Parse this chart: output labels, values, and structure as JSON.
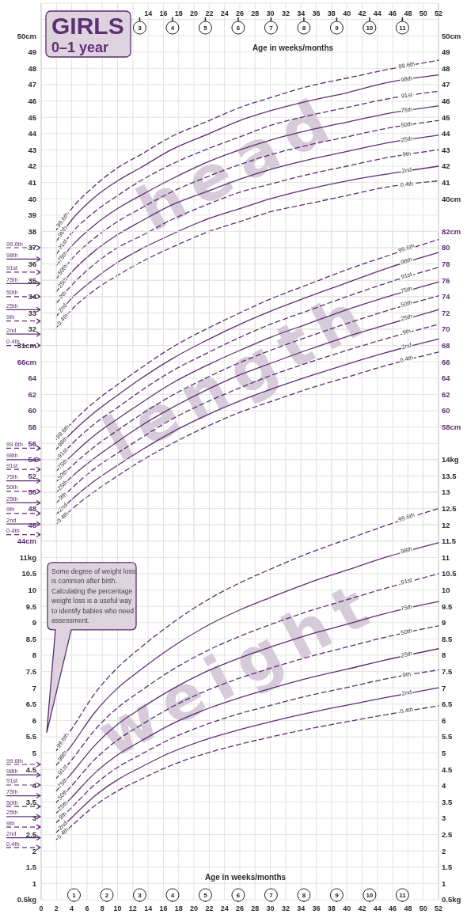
{
  "chart_data": [
    {
      "type": "line",
      "title": "GIRLS",
      "subtitle": "0–1 year",
      "ylabel": "head",
      "xlabel": "Age in weeks/months",
      "grid": true,
      "xlim": [
        0,
        52
      ],
      "ylim": [
        31,
        52
      ],
      "y2lim": [
        31,
        52
      ],
      "xticks": [
        14,
        16,
        18,
        20,
        22,
        24,
        26,
        28,
        30,
        32,
        34,
        36,
        38,
        40,
        42,
        44,
        46,
        48,
        50,
        52
      ],
      "x2lim": [
        0,
        12.1
      ],
      "x2ticks": [
        3,
        4,
        5,
        6,
        7,
        8,
        9,
        10,
        11
      ],
      "yticks": [
        {
          "value": 31,
          "label": "31cm"
        },
        32,
        33,
        34,
        35,
        36,
        37,
        38,
        39,
        40,
        41,
        42,
        43,
        44,
        45,
        46,
        47,
        48,
        49,
        {
          "value": 50,
          "label": "50cm"
        }
      ],
      "y2ticks": [
        {
          "value": 40,
          "label": "40cm"
        },
        41,
        42,
        43,
        44,
        45,
        46,
        47,
        48,
        49,
        {
          "value": 50,
          "label": "50cm"
        }
      ],
      "x": [
        2,
        4,
        7,
        10,
        13,
        17,
        22,
        26,
        30,
        35,
        40,
        45,
        52
      ],
      "series": [
        {
          "name": "99.6th",
          "color": "#5f2d73",
          "line_style": "dashed",
          "values": [
            38.1,
            39.4,
            40.8,
            41.9,
            42.7,
            43.8,
            44.8,
            45.6,
            46.2,
            46.9,
            47.4,
            47.9,
            48.5
          ]
        },
        {
          "name": "98th",
          "color": "#5f2d73",
          "line_style": "solid",
          "values": [
            37.4,
            38.7,
            40.1,
            41.1,
            41.9,
            43.0,
            44.0,
            44.8,
            45.4,
            46.0,
            46.5,
            47.1,
            47.6
          ]
        },
        {
          "name": "91st",
          "color": "#5f2d73",
          "line_style": "dashed",
          "values": [
            36.6,
            37.9,
            39.2,
            40.2,
            41.1,
            42.1,
            43.1,
            43.8,
            44.5,
            45.1,
            45.6,
            46.1,
            46.6
          ]
        },
        {
          "name": "75th",
          "color": "#5f2d73",
          "line_style": "solid",
          "values": [
            35.9,
            37.1,
            38.4,
            39.4,
            40.2,
            41.2,
            42.3,
            43.0,
            43.6,
            44.2,
            44.7,
            45.2,
            45.7
          ]
        },
        {
          "name": "50th",
          "color": "#5f2d73",
          "line_style": "dashed",
          "values": [
            35.1,
            36.3,
            37.6,
            38.6,
            39.4,
            40.4,
            41.4,
            42.1,
            42.7,
            43.3,
            43.8,
            44.3,
            44.8
          ]
        },
        {
          "name": "25th",
          "color": "#5f2d73",
          "line_style": "solid",
          "values": [
            34.3,
            35.5,
            36.8,
            37.8,
            38.6,
            39.6,
            40.5,
            41.2,
            41.8,
            42.4,
            42.9,
            43.4,
            43.9
          ]
        },
        {
          "name": "9th",
          "color": "#5f2d73",
          "line_style": "dashed",
          "values": [
            33.6,
            34.7,
            36.0,
            37.0,
            37.7,
            38.7,
            39.7,
            40.4,
            40.9,
            41.5,
            42.0,
            42.5,
            43.0
          ]
        },
        {
          "name": "2nd",
          "color": "#5f2d73",
          "line_style": "solid",
          "values": [
            32.8,
            33.9,
            35.1,
            36.1,
            36.9,
            37.8,
            38.8,
            39.4,
            40.0,
            40.6,
            41.1,
            41.5,
            42.0
          ]
        },
        {
          "name": "0.4th",
          "color": "#5f2d73",
          "line_style": "dashed",
          "values": [
            32.1,
            33.2,
            34.4,
            35.3,
            36.1,
            37.0,
            38.0,
            38.6,
            39.2,
            39.7,
            40.2,
            40.7,
            41.1
          ]
        }
      ],
      "ref_lines": [
        {
          "axis": "y",
          "value": 37.0,
          "label": "99.6th",
          "line_style": "dashed"
        },
        {
          "axis": "y",
          "value": 36.3,
          "label": "98th",
          "line_style": "solid"
        },
        {
          "axis": "y",
          "value": 35.5,
          "label": "91st",
          "line_style": "dashed"
        },
        {
          "axis": "y",
          "value": 34.8,
          "label": "75th",
          "line_style": "solid"
        },
        {
          "axis": "y",
          "value": 34.0,
          "label": "50th",
          "line_style": "dashed"
        },
        {
          "axis": "y",
          "value": 33.2,
          "label": "25th",
          "line_style": "solid"
        },
        {
          "axis": "y",
          "value": 32.5,
          "label": "9th",
          "line_style": "dashed"
        },
        {
          "axis": "y",
          "value": 31.7,
          "label": "2nd",
          "line_style": "solid"
        },
        {
          "axis": "y",
          "value": 31.0,
          "label": "0.4th",
          "line_style": "dashed"
        }
      ]
    },
    {
      "type": "line",
      "ylabel": "length",
      "grid": true,
      "tick_labels": "y",
      "xlim": [
        0,
        52
      ],
      "ylim": [
        44,
        82
      ],
      "y2lim": [
        44,
        82
      ],
      "yticks": [
        {
          "value": 44,
          "label": "44cm"
        },
        46,
        48,
        50,
        52,
        54,
        56,
        58,
        60,
        62,
        64,
        {
          "value": 66,
          "label": "66cm"
        }
      ],
      "y2ticks": [
        {
          "value": 58,
          "label": "58cm"
        },
        60,
        62,
        64,
        66,
        68,
        70,
        72,
        74,
        76,
        78,
        80,
        {
          "value": 82,
          "label": "82cm"
        }
      ],
      "x": [
        2,
        4,
        7,
        10,
        13,
        17,
        22,
        26,
        30,
        35,
        40,
        45,
        52
      ],
      "series": [
        {
          "name": "99.6th",
          "color": "#5f2d73",
          "line_style": "dashed",
          "values": [
            56.5,
            58.5,
            61.1,
            63.2,
            65.2,
            67.7,
            70.2,
            72.0,
            73.7,
            75.5,
            77.3,
            78.9,
            81.0
          ]
        },
        {
          "name": "98th",
          "color": "#5f2d73",
          "line_style": "solid",
          "values": [
            55.3,
            57.3,
            59.8,
            61.9,
            63.9,
            66.3,
            68.8,
            70.6,
            72.2,
            74.0,
            75.7,
            77.4,
            79.4
          ]
        },
        {
          "name": "91st",
          "color": "#5f2d73",
          "line_style": "dashed",
          "values": [
            53.9,
            55.9,
            58.4,
            60.4,
            62.4,
            64.8,
            67.2,
            69.0,
            70.6,
            72.3,
            74.0,
            75.6,
            77.6
          ]
        },
        {
          "name": "75th",
          "color": "#5f2d73",
          "line_style": "solid",
          "values": [
            52.6,
            54.5,
            57.0,
            59.0,
            60.9,
            63.3,
            65.7,
            67.4,
            69.0,
            70.7,
            72.4,
            73.9,
            75.8
          ]
        },
        {
          "name": "50th",
          "color": "#5f2d73",
          "line_style": "dashed",
          "values": [
            51.3,
            53.2,
            55.6,
            57.6,
            59.5,
            61.8,
            64.2,
            65.9,
            67.4,
            69.1,
            70.7,
            72.2,
            74.1
          ]
        },
        {
          "name": "25th",
          "color": "#5f2d73",
          "line_style": "solid",
          "values": [
            50.0,
            51.9,
            54.2,
            56.2,
            58.1,
            60.3,
            62.7,
            64.4,
            65.8,
            67.5,
            69.1,
            70.5,
            72.4
          ]
        },
        {
          "name": "9th",
          "color": "#5f2d73",
          "line_style": "dashed",
          "values": [
            48.7,
            50.5,
            52.9,
            54.8,
            56.6,
            58.9,
            61.2,
            62.8,
            64.3,
            65.9,
            67.4,
            68.8,
            70.6
          ]
        },
        {
          "name": "2nd",
          "color": "#5f2d73",
          "line_style": "solid",
          "values": [
            47.3,
            49.1,
            51.4,
            53.3,
            55.1,
            57.3,
            59.6,
            61.2,
            62.6,
            64.2,
            65.7,
            67.1,
            68.8
          ]
        },
        {
          "name": "0.4th",
          "color": "#5f2d73",
          "line_style": "dashed",
          "values": [
            46.1,
            47.9,
            50.1,
            52.0,
            53.8,
            55.9,
            58.2,
            59.8,
            61.1,
            62.7,
            64.1,
            65.5,
            67.2
          ]
        }
      ],
      "ref_lines": [
        {
          "axis": "y",
          "value": 55.4,
          "label": "99.6th",
          "line_style": "dashed"
        },
        {
          "axis": "y",
          "value": 54.0,
          "label": "98th",
          "line_style": "solid"
        },
        {
          "axis": "y",
          "value": 52.8,
          "label": "91st",
          "line_style": "dashed"
        },
        {
          "axis": "y",
          "value": 51.4,
          "label": "75th",
          "line_style": "solid"
        },
        {
          "axis": "y",
          "value": 50.1,
          "label": "50th",
          "line_style": "dashed"
        },
        {
          "axis": "y",
          "value": 48.7,
          "label": "25th",
          "line_style": "solid"
        },
        {
          "axis": "y",
          "value": 47.4,
          "label": "9th",
          "line_style": "dashed"
        },
        {
          "axis": "y",
          "value": 46.1,
          "label": "2nd",
          "line_style": "solid"
        },
        {
          "axis": "y",
          "value": 44.8,
          "label": "0.4th",
          "line_style": "dashed"
        }
      ]
    },
    {
      "type": "line",
      "ylabel": "weight",
      "xlabel": "Age in weeks/months",
      "grid": true,
      "xlim": [
        0,
        52
      ],
      "ylim": [
        0.5,
        14
      ],
      "y2lim": [
        0.5,
        14
      ],
      "xticks": [
        0,
        2,
        4,
        6,
        8,
        10,
        12,
        14,
        16,
        18,
        20,
        22,
        24,
        26,
        28,
        30,
        32,
        34,
        36,
        38,
        40,
        42,
        44,
        46,
        48,
        50,
        52
      ],
      "x2lim": [
        0,
        12.1
      ],
      "x2ticks": [
        1,
        2,
        3,
        4,
        5,
        6,
        7,
        8,
        9,
        10,
        11
      ],
      "yticks": [
        {
          "value": 0.5,
          "label": "0.5kg"
        },
        1,
        1.5,
        2,
        2.5,
        3,
        3.5,
        4,
        4.5,
        5,
        5.5,
        6,
        6.5,
        7,
        7.5,
        8,
        8.5,
        9,
        9.5,
        10,
        10.5,
        {
          "value": 11,
          "label": "11kg"
        }
      ],
      "y2ticks": [
        {
          "value": 0.5,
          "label": "0.5kg"
        },
        1,
        1.5,
        2,
        2.5,
        3,
        3.5,
        4,
        4.5,
        5,
        5.5,
        6,
        6.5,
        7,
        7.5,
        8,
        8.5,
        9,
        9.5,
        10,
        10.5,
        11,
        11.5,
        12,
        12.5,
        13,
        13.5,
        {
          "value": 14,
          "label": "14kg"
        }
      ],
      "x": [
        2,
        4,
        7,
        10,
        13,
        17,
        22,
        26,
        30,
        35,
        40,
        45,
        52
      ],
      "series": [
        {
          "name": "99.6th",
          "color": "#5f2d73",
          "line_style": "dashed",
          "values": [
            5.08,
            5.74,
            6.82,
            7.62,
            8.23,
            8.96,
            9.73,
            10.22,
            10.64,
            11.13,
            11.55,
            11.97,
            12.5
          ]
        },
        {
          "name": "98th",
          "color": "#5f2d73",
          "line_style": "solid",
          "values": [
            4.63,
            5.24,
            6.24,
            6.99,
            7.55,
            8.23,
            8.94,
            9.39,
            9.77,
            10.22,
            10.61,
            11.0,
            11.45
          ]
        },
        {
          "name": "91st",
          "color": "#5f2d73",
          "line_style": "dashed",
          "values": [
            4.23,
            4.79,
            5.7,
            6.39,
            6.9,
            7.53,
            8.17,
            8.58,
            8.94,
            9.35,
            9.7,
            10.05,
            10.5
          ]
        },
        {
          "name": "75th",
          "color": "#5f2d73",
          "line_style": "solid",
          "values": [
            3.84,
            4.38,
            5.23,
            5.88,
            6.36,
            6.94,
            7.54,
            7.92,
            8.25,
            8.63,
            8.95,
            9.28,
            9.65
          ]
        },
        {
          "name": "50th",
          "color": "#5f2d73",
          "line_style": "dashed",
          "values": [
            3.49,
            4.0,
            4.8,
            5.4,
            5.85,
            6.4,
            6.95,
            7.3,
            7.6,
            7.95,
            8.25,
            8.55,
            8.9
          ]
        },
        {
          "name": "25th",
          "color": "#5f2d73",
          "line_style": "solid",
          "values": [
            3.16,
            3.64,
            4.38,
            4.94,
            5.36,
            5.88,
            6.38,
            6.7,
            6.98,
            7.3,
            7.57,
            7.85,
            8.2
          ]
        },
        {
          "name": "9th",
          "color": "#5f2d73",
          "line_style": "dashed",
          "values": [
            2.87,
            3.33,
            4.03,
            4.56,
            4.95,
            5.44,
            5.91,
            6.21,
            6.46,
            6.76,
            7.01,
            7.27,
            7.55
          ]
        },
        {
          "name": "2nd",
          "color": "#5f2d73",
          "line_style": "solid",
          "values": [
            2.57,
            3.02,
            3.68,
            4.18,
            4.56,
            5.02,
            5.45,
            5.72,
            5.96,
            6.23,
            6.47,
            6.7,
            7.0
          ]
        },
        {
          "name": "0.4th",
          "color": "#5f2d73",
          "line_style": "dashed",
          "values": [
            2.35,
            2.77,
            3.38,
            3.84,
            4.19,
            4.62,
            5.02,
            5.27,
            5.49,
            5.74,
            5.96,
            6.17,
            6.45
          ]
        }
      ],
      "ref_lines": [
        {
          "axis": "y",
          "value": 4.65,
          "label": "99.6th",
          "line_style": "dashed"
        },
        {
          "axis": "y",
          "value": 4.33,
          "label": "98th",
          "line_style": "solid"
        },
        {
          "axis": "y",
          "value": 4.02,
          "label": "91st",
          "line_style": "dashed"
        },
        {
          "axis": "y",
          "value": 3.69,
          "label": "75th",
          "line_style": "solid"
        },
        {
          "axis": "y",
          "value": 3.36,
          "label": "50th",
          "line_style": "dashed"
        },
        {
          "axis": "y",
          "value": 3.05,
          "label": "25th",
          "line_style": "solid"
        },
        {
          "axis": "y",
          "value": 2.73,
          "label": "9th",
          "line_style": "dashed"
        },
        {
          "axis": "y",
          "value": 2.4,
          "label": "2nd",
          "line_style": "solid"
        },
        {
          "axis": "y",
          "value": 2.1,
          "label": "0.4th",
          "line_style": "dashed"
        }
      ],
      "annotations": [
        "Some degree of weight loss is common after birth. Calculating the percentage weight loss is a useful way to identify babies who need assessment."
      ]
    }
  ]
}
